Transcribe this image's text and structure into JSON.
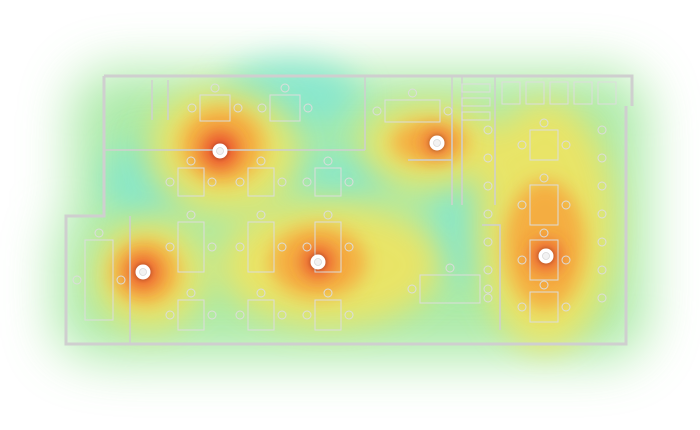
{
  "heatmap": {
    "colors": {
      "strong": "#e8412a",
      "good": "#f7a43a",
      "fair": "#f4e35c",
      "weak": "#8fe38a",
      "poor": "#7ee6d3",
      "wall": "#cfcfcf",
      "furniture": "#dcdcdc",
      "access_point": "#ffffff"
    },
    "access_points": [
      {
        "id": "ap-1",
        "strength": 1.0
      },
      {
        "id": "ap-2",
        "strength": 0.9
      },
      {
        "id": "ap-3",
        "strength": 1.0
      },
      {
        "id": "ap-4",
        "strength": 0.95
      },
      {
        "id": "ap-5",
        "strength": 1.0
      }
    ]
  }
}
